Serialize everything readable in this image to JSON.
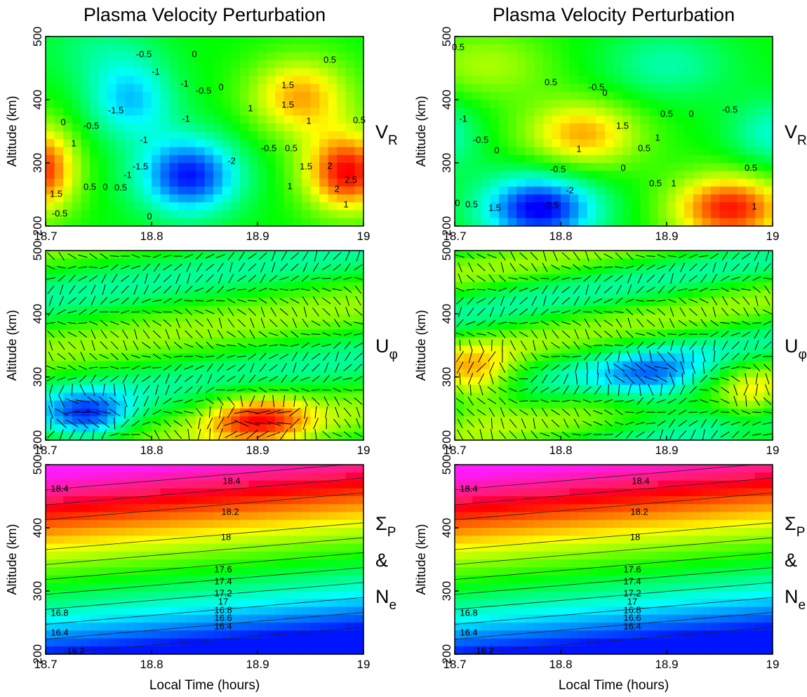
{
  "chart_data": [
    {
      "type": "heatmap",
      "field": "vr-left",
      "title": "Plasma Velocity Perturbation",
      "ylabel": "Altitude (km)",
      "side_label": [
        {
          "main": "V",
          "sub": "R"
        }
      ],
      "xlim": [
        18.7,
        19
      ],
      "xticks": [
        18.7,
        18.8,
        18.9,
        19
      ],
      "ylim": [
        200,
        500
      ],
      "yticks": [
        200,
        300,
        400,
        500
      ],
      "contour_labels": [
        "-0.5",
        "0",
        "0.5",
        "-1",
        "-1",
        "-0.5",
        "0",
        "1.5",
        "1.5",
        "-1.5",
        "1",
        "0",
        "-0.5",
        "1",
        "-1",
        "0.5",
        "-1",
        "-0.5",
        "0.5",
        "-2",
        "1",
        "-1.5",
        "2",
        "1.5",
        "-1",
        "2.5",
        "0.5",
        "0",
        "0.5",
        "1",
        "1.5",
        "2",
        "1",
        "0",
        "-0.5"
      ]
    },
    {
      "type": "heatmap",
      "field": "vr-right",
      "title": "Plasma Velocity Perturbation",
      "ylabel": "Altitude (km)",
      "side_label": [
        {
          "main": "V",
          "sub": "R"
        }
      ],
      "xlim": [
        18.7,
        19
      ],
      "xticks": [
        18.7,
        18.8,
        18.9,
        19
      ],
      "ylim": [
        200,
        500
      ],
      "yticks": [
        200,
        300,
        400,
        500
      ],
      "contour_labels": [
        "0.5",
        "-0.5",
        "0.5",
        "0",
        "0.5",
        "0",
        "-0.5",
        "-1",
        "1.5",
        "-0.5",
        "1",
        "1",
        "0.5",
        "0",
        "-0.5",
        "0",
        "0.5",
        "-2",
        "0.5",
        "1",
        "0",
        "0.5",
        "1.5",
        "-2.5",
        "1"
      ]
    },
    {
      "type": "heatmap",
      "field": "u-left",
      "ylabel": "Altitude (km)",
      "side_label": [
        {
          "main": "U",
          "sub": "φ"
        }
      ],
      "xlim": [
        18.7,
        19
      ],
      "xticks": [
        18.7,
        18.8,
        18.9,
        19
      ],
      "ylim": [
        200,
        500
      ],
      "yticks": [
        200,
        300,
        400,
        500
      ]
    },
    {
      "type": "heatmap",
      "field": "u-right",
      "ylabel": "Altitude (km)",
      "side_label": [
        {
          "main": "U",
          "sub": "φ"
        }
      ],
      "xlim": [
        18.7,
        19
      ],
      "xticks": [
        18.7,
        18.8,
        18.9,
        19
      ],
      "ylim": [
        200,
        500
      ],
      "yticks": [
        200,
        300,
        400,
        500
      ]
    },
    {
      "type": "heatmap",
      "field": "ne",
      "ylabel": "Altitude (km)",
      "xlabel": "Local Time (hours)",
      "side_label": [
        {
          "main": "Σ",
          "sub": "P"
        },
        {
          "main": "&"
        },
        {
          "main": "N",
          "sub": "e"
        }
      ],
      "xlim": [
        18.7,
        19
      ],
      "xticks": [
        18.7,
        18.8,
        18.9,
        19
      ],
      "ylim": [
        200,
        500
      ],
      "yticks": [
        200,
        300,
        400,
        500
      ],
      "contour_labels": [
        "18.4",
        "18.4",
        "18.2",
        "18",
        "17.6",
        "17.4",
        "17.2",
        "17",
        "16.8",
        "16.6",
        "16.4",
        "16.8",
        "16.4",
        "16.2"
      ]
    },
    {
      "type": "heatmap",
      "field": "ne",
      "ylabel": "Altitude (km)",
      "xlabel": "Local Time (hours)",
      "side_label": [
        {
          "main": "Σ",
          "sub": "P"
        },
        {
          "main": "&"
        },
        {
          "main": "N",
          "sub": "e"
        }
      ],
      "xlim": [
        18.7,
        19
      ],
      "xticks": [
        18.7,
        18.8,
        18.9,
        19
      ],
      "ylim": [
        200,
        500
      ],
      "yticks": [
        200,
        300,
        400,
        500
      ],
      "contour_labels": [
        "18.4",
        "18.4",
        "18.2",
        "18",
        "17.6",
        "17.4",
        "17.2",
        "17",
        "16.8",
        "16.6",
        "16.4",
        "16.8",
        "16.4",
        "16.2"
      ]
    }
  ]
}
